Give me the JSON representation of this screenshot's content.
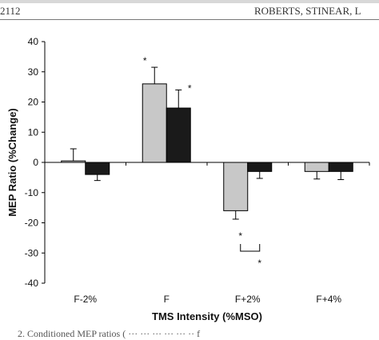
{
  "header": {
    "page_number": "2112",
    "running_head": "ROBERTS, STINEAR, L"
  },
  "caption_fragment": "2.     Conditioned MEP ratios ( ··· ··· ··· ··· ··· ·· f",
  "chart_data": {
    "type": "bar",
    "categories": [
      "F-2%",
      "F",
      "F+2%",
      "F+4%"
    ],
    "series": [
      {
        "values": [
          0.5,
          26,
          -16,
          -3
        ],
        "errors": [
          4,
          5.5,
          2.8,
          2.5
        ],
        "color": "#c8c8c8"
      },
      {
        "values": [
          -4,
          18,
          -3,
          -3
        ],
        "errors": [
          2,
          6,
          2.3,
          2.7
        ],
        "color": "#1a1a1a"
      }
    ],
    "xlabel": "TMS Intensity (%MSO)",
    "ylabel": "MEP Ratio (%Change)",
    "ylim": [
      -40,
      40
    ],
    "yticks": [
      40,
      30,
      20,
      10,
      0,
      -10,
      -20,
      -30,
      -40
    ],
    "annotations": [
      {
        "text": "*",
        "category": "F",
        "series": 0
      },
      {
        "text": "*",
        "category": "F",
        "series": 1
      },
      {
        "text": "*",
        "category": "F+2%",
        "series": 0,
        "bracket": "top"
      },
      {
        "text": "*",
        "category": "F+2%",
        "series": 1,
        "bracket": "bottom"
      }
    ],
    "grid": false,
    "legend": "none"
  }
}
